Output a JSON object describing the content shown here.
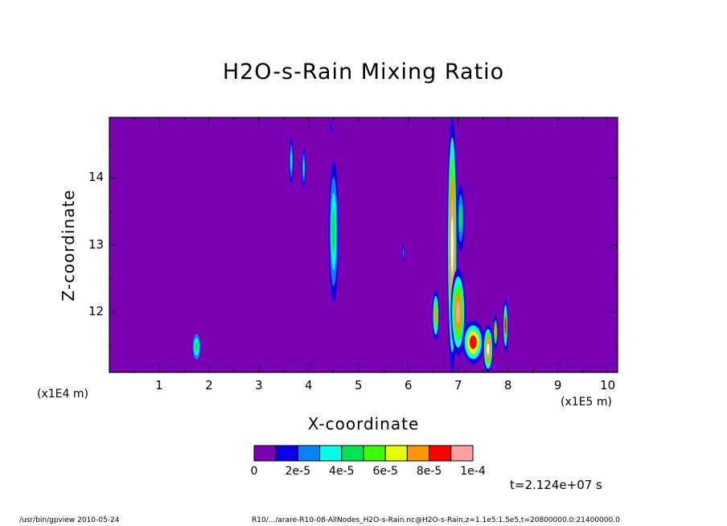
{
  "chart_data": {
    "type": "heatmap",
    "title": "H2O-s-Rain Mixing Ratio",
    "xlabel": "X-coordinate",
    "ylabel": "Z-coordinate",
    "x_scale_note_left": "(x1E4 m)",
    "x_scale_note_right": "(x1E5 m)",
    "xlim": [
      0,
      10.2
    ],
    "ylim": [
      11.1,
      14.9
    ],
    "x_ticks": [
      1,
      2,
      3,
      4,
      5,
      6,
      7,
      8,
      9,
      10
    ],
    "x_tick_labels": [
      "1",
      "2",
      "3",
      "4",
      "5",
      "6",
      "7",
      "8",
      "9",
      "10"
    ],
    "y_ticks": [
      12,
      13,
      14
    ],
    "y_tick_labels": [
      "12",
      "13",
      "14"
    ],
    "background_level": 0,
    "levels": [
      0,
      1e-05,
      2e-05,
      3e-05,
      4e-05,
      5e-05,
      6e-05,
      7e-05,
      8e-05,
      9e-05,
      0.0001
    ],
    "level_colors": [
      "#7a00b4",
      "#0a00e6",
      "#0a82ff",
      "#00ffe6",
      "#00e650",
      "#3cff00",
      "#e6ff00",
      "#ff9600",
      "#ff0000",
      "#ffa0a0",
      "#ffffff"
    ],
    "colorbar_labels": [
      "0",
      "2e-5",
      "4e-5",
      "6e-5",
      "8e-5",
      "1e-4"
    ],
    "features": [
      {
        "x": 1.75,
        "z": 11.48,
        "w": 0.15,
        "h": 0.38,
        "rings": [
          2,
          3,
          4
        ]
      },
      {
        "x": 3.65,
        "z": 14.25,
        "w": 0.08,
        "h": 0.7,
        "rings": [
          1,
          2,
          3
        ]
      },
      {
        "x": 3.9,
        "z": 14.15,
        "w": 0.07,
        "h": 0.62,
        "rings": [
          1,
          2,
          3
        ]
      },
      {
        "x": 4.5,
        "z": 13.2,
        "w": 0.2,
        "h": 2.1,
        "rings": [
          1,
          2,
          3,
          4
        ]
      },
      {
        "x": 4.45,
        "z": 14.75,
        "w": 0.04,
        "h": 0.15,
        "rings": [
          1
        ]
      },
      {
        "x": 5.9,
        "z": 12.88,
        "w": 0.04,
        "h": 0.25,
        "rings": [
          1,
          2
        ]
      },
      {
        "x": 6.55,
        "z": 11.95,
        "w": 0.14,
        "h": 0.75,
        "rings": [
          1,
          3,
          5,
          7
        ]
      },
      {
        "x": 6.88,
        "z": 13.0,
        "w": 0.2,
        "h": 3.8,
        "rings": [
          1,
          3,
          5,
          7,
          9,
          10
        ]
      },
      {
        "x": 7.0,
        "z": 12.0,
        "w": 0.3,
        "h": 1.3,
        "rings": [
          1,
          3,
          5,
          7,
          9
        ]
      },
      {
        "x": 7.05,
        "z": 13.4,
        "w": 0.15,
        "h": 1.0,
        "rings": [
          1,
          2,
          4
        ]
      },
      {
        "x": 7.3,
        "z": 11.55,
        "w": 0.45,
        "h": 0.65,
        "rings": [
          1,
          3,
          6,
          8
        ]
      },
      {
        "x": 7.6,
        "z": 11.45,
        "w": 0.2,
        "h": 0.7,
        "rings": [
          1,
          3,
          5,
          7,
          9,
          10
        ]
      },
      {
        "x": 7.95,
        "z": 11.8,
        "w": 0.1,
        "h": 0.8,
        "rings": [
          1,
          3,
          5,
          8
        ]
      },
      {
        "x": 7.75,
        "z": 11.7,
        "w": 0.1,
        "h": 0.5,
        "rings": [
          1,
          4,
          7
        ]
      }
    ]
  },
  "time_label": "t=2.124e+07 s",
  "footer_left": "/usr/bin/gpview  2010-05-24",
  "footer_right": "R10/.../arare-R10-08-AllNodes_H2O-s-Rain.nc@H2O-s-Rain,z=1.1e5:1.5e5,t=20800000.0:21400000.0"
}
